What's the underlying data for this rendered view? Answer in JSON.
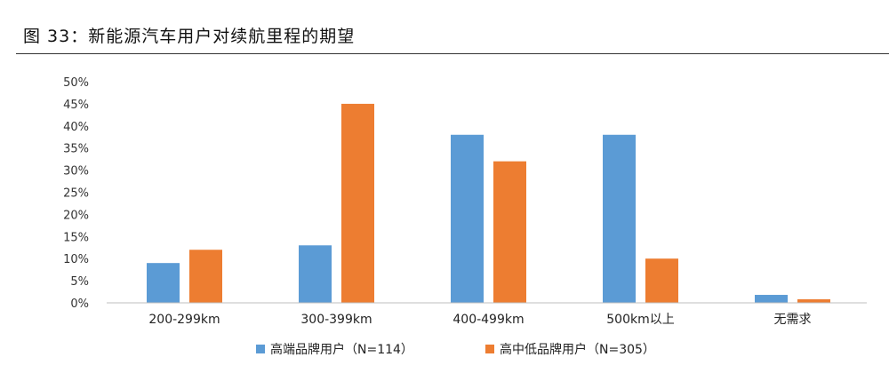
{
  "figure": {
    "caption": "图 33：新能源汽车用户对续航里程的期望"
  },
  "colors": {
    "series1": "#5B9BD5",
    "series2": "#ED7D31",
    "axis": "#BFBFBF"
  },
  "chart_data": {
    "type": "bar",
    "title": "",
    "xlabel": "",
    "ylabel": "",
    "ylim": [
      0,
      50
    ],
    "yticks": [
      "0%",
      "5%",
      "10%",
      "15%",
      "20%",
      "25%",
      "30%",
      "35%",
      "40%",
      "45%",
      "50%"
    ],
    "categories": [
      "200-299km",
      "300-399km",
      "400-499km",
      "500km以上",
      "无需求"
    ],
    "series": [
      {
        "name": "高端品牌用户（N=114）",
        "values": [
          9,
          13,
          38,
          38,
          1.8
        ]
      },
      {
        "name": "高中低品牌用户（N=305）",
        "values": [
          12,
          45,
          32,
          10,
          0.8
        ]
      }
    ],
    "grid": false,
    "legend": "bottom-center"
  }
}
